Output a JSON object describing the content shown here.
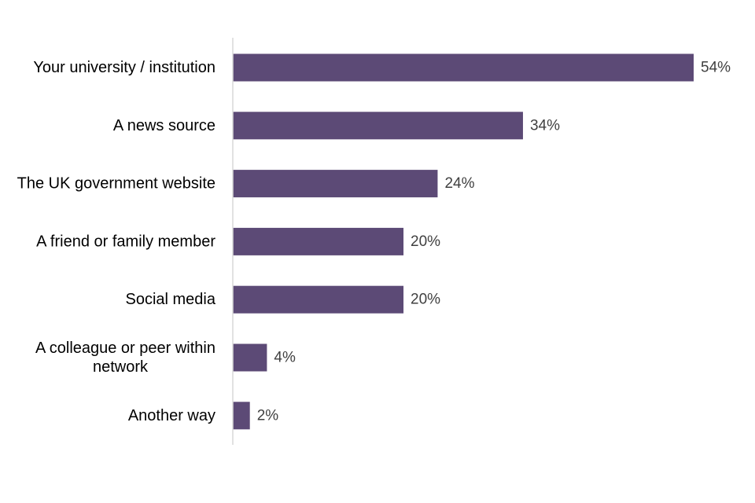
{
  "chart_data": {
    "type": "bar",
    "orientation": "horizontal",
    "categories": [
      "Your university / institution",
      "A news source",
      "The UK government website",
      "A friend or family member",
      "Social media",
      "A colleague or peer within network",
      "Another way"
    ],
    "category_lines": [
      [
        "Your university / institution"
      ],
      [
        "A news source"
      ],
      [
        "The UK government website"
      ],
      [
        "A friend or family member"
      ],
      [
        "Social media"
      ],
      [
        "A colleague or peer within",
        "network"
      ],
      [
        "Another way"
      ]
    ],
    "values": [
      54,
      34,
      24,
      20,
      20,
      4,
      2
    ],
    "value_labels": [
      "54%",
      "34%",
      "24%",
      "20%",
      "20%",
      "4%",
      "2%"
    ],
    "xlim": [
      0,
      60
    ],
    "grid": false,
    "legend": "none",
    "bar_color": "#5c4a76",
    "axis_color": "#d9d9d9",
    "title": "",
    "xlabel": "",
    "ylabel": ""
  }
}
